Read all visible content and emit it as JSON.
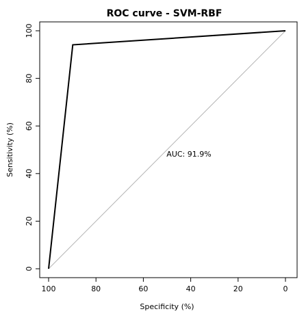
{
  "chart_data": {
    "type": "line",
    "title": "ROC curve - SVM-RBF",
    "xlabel": "Specificity (%)",
    "ylabel": "Sensitivity (%)",
    "x_reversed": true,
    "xlim": [
      100,
      0
    ],
    "ylim": [
      0,
      100
    ],
    "xticks": [
      "100",
      "80",
      "60",
      "40",
      "20",
      "0"
    ],
    "yticks": [
      "0",
      "20",
      "40",
      "60",
      "80",
      "100"
    ],
    "grid": false,
    "series": [
      {
        "x": [
          100,
          89.8,
          0
        ],
        "y": [
          0,
          94.1,
          100
        ],
        "color": "#000000"
      }
    ],
    "reference_line": {
      "x": [
        100,
        0
      ],
      "y": [
        0,
        100
      ],
      "color": "#b3b3b3"
    },
    "annotations": [
      {
        "text": "AUC: 91.9%",
        "x": 50,
        "y": 50
      }
    ]
  }
}
